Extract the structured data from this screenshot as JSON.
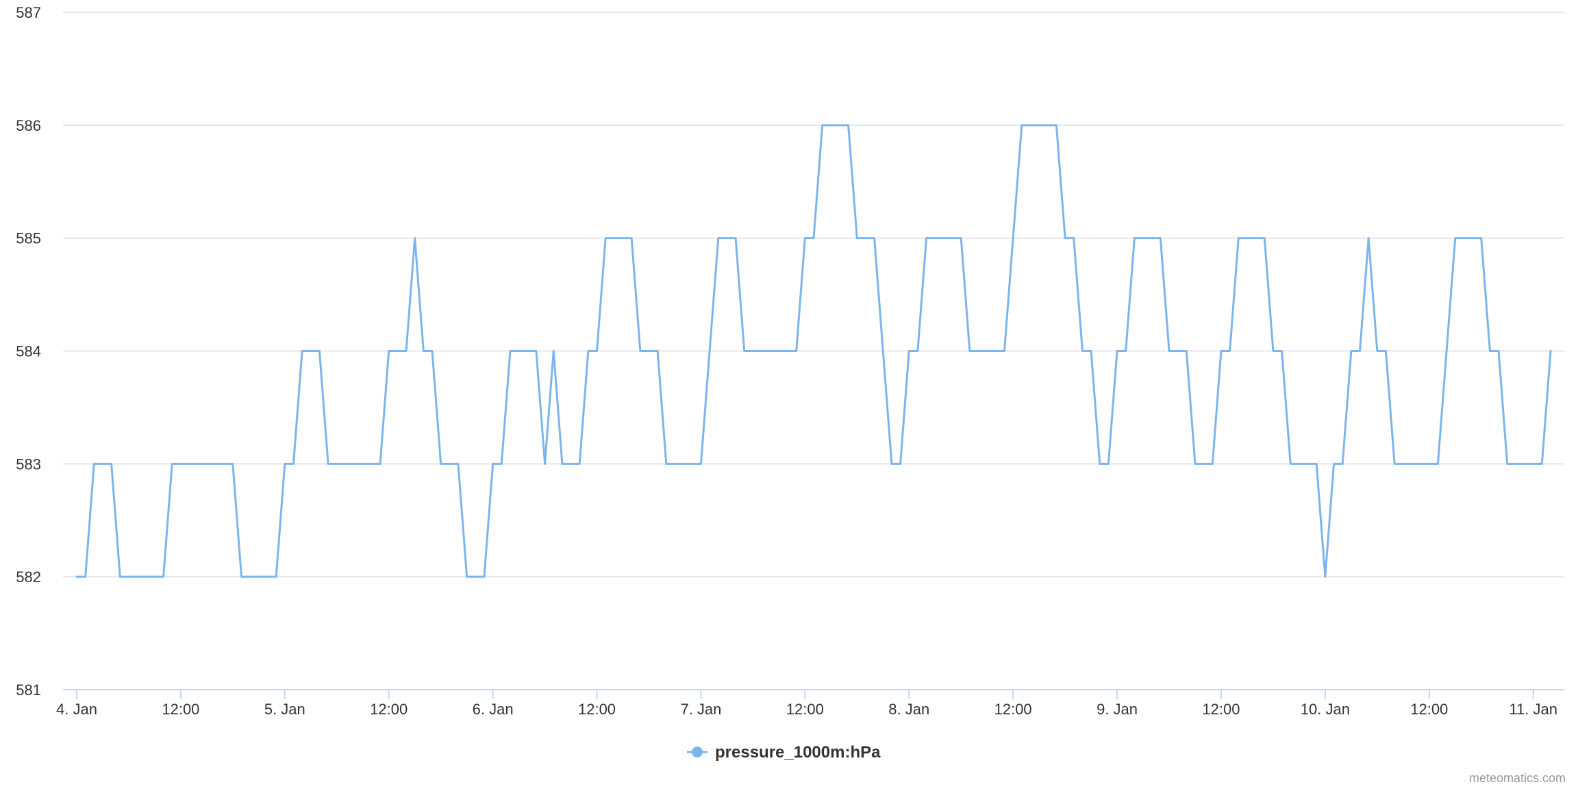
{
  "chart_data": {
    "type": "line",
    "title": "",
    "xlabel": "",
    "ylabel": "",
    "ylim": [
      581,
      587
    ],
    "yticks": [
      "581",
      "582",
      "583",
      "584",
      "585",
      "586",
      "587"
    ],
    "x_start": "2024-01-04T00:00",
    "x_step_hours": 1,
    "xticks": [
      "4. Jan",
      "12:00",
      "5. Jan",
      "12:00",
      "6. Jan",
      "12:00",
      "7. Jan",
      "12:00",
      "8. Jan",
      "12:00",
      "9. Jan",
      "12:00",
      "10. Jan",
      "12:00",
      "11. Jan"
    ],
    "grid": true,
    "legend_position": "bottom-center",
    "series": [
      {
        "name": "pressure_1000m:hPa",
        "color": "#7cb5ec",
        "values": [
          582,
          582,
          583,
          583,
          583,
          582,
          582,
          582,
          582,
          582,
          582,
          583,
          583,
          583,
          583,
          583,
          583,
          583,
          583,
          582,
          582,
          582,
          582,
          582,
          583,
          583,
          584,
          584,
          584,
          583,
          583,
          583,
          583,
          583,
          583,
          583,
          584,
          584,
          584,
          585,
          584,
          584,
          583,
          583,
          583,
          582,
          582,
          582,
          583,
          583,
          584,
          584,
          584,
          584,
          583,
          584,
          583,
          583,
          583,
          584,
          584,
          585,
          585,
          585,
          585,
          584,
          584,
          584,
          583,
          583,
          583,
          583,
          583,
          584,
          585,
          585,
          585,
          584,
          584,
          584,
          584,
          584,
          584,
          584,
          585,
          585,
          586,
          586,
          586,
          586,
          585,
          585,
          585,
          584,
          583,
          583,
          584,
          584,
          585,
          585,
          585,
          585,
          585,
          584,
          584,
          584,
          584,
          584,
          585,
          586,
          586,
          586,
          586,
          586,
          585,
          585,
          584,
          584,
          583,
          583,
          584,
          584,
          585,
          585,
          585,
          585,
          584,
          584,
          584,
          583,
          583,
          583,
          584,
          584,
          585,
          585,
          585,
          585,
          584,
          584,
          583,
          583,
          583,
          583,
          582,
          583,
          583,
          584,
          584,
          585,
          584,
          584,
          583,
          583,
          583,
          583,
          583,
          583,
          584,
          585,
          585,
          585,
          585,
          584,
          584,
          583,
          583,
          583,
          583,
          583,
          584
        ]
      }
    ]
  },
  "legend": {
    "label": "pressure_1000m:hPa"
  },
  "credit": "meteomatics.com"
}
